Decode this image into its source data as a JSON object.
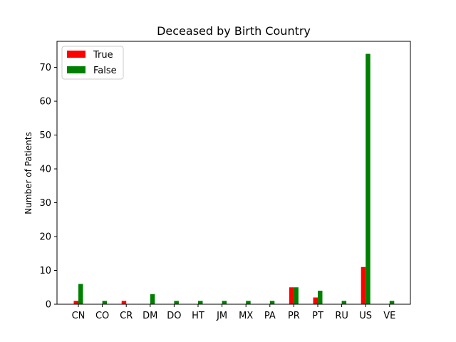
{
  "chart_data": {
    "type": "bar",
    "title": "Deceased by Birth Country",
    "xlabel": "",
    "ylabel": "Number of Patients",
    "ylim": [
      0,
      77.7
    ],
    "yticks": [
      0,
      10,
      20,
      30,
      40,
      50,
      60,
      70
    ],
    "categories": [
      "CN",
      "CO",
      "CR",
      "DM",
      "DO",
      "HT",
      "JM",
      "MX",
      "PA",
      "PR",
      "PT",
      "RU",
      "US",
      "VE"
    ],
    "series": [
      {
        "name": "True",
        "color": "#ff0000",
        "values": [
          1,
          0,
          1,
          0,
          0,
          0,
          0,
          0,
          0,
          5,
          2,
          0,
          11,
          0
        ]
      },
      {
        "name": "False",
        "color": "#008000",
        "values": [
          6,
          1,
          0,
          3,
          1,
          1,
          1,
          1,
          1,
          5,
          4,
          1,
          74,
          1
        ]
      }
    ],
    "legend_position": "top-left",
    "grid": false
  }
}
